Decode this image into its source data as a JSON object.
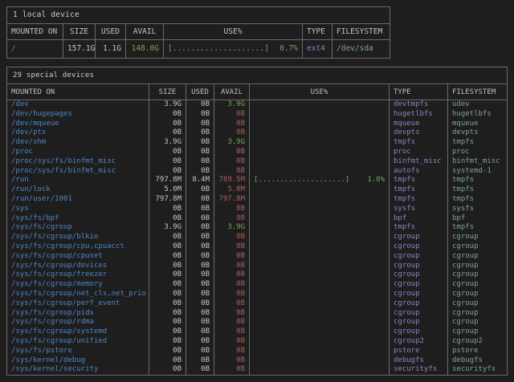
{
  "colors": {
    "text": "#c6c6c6",
    "title": "#cdcdcd",
    "header": "#c2c2c2",
    "mount_blue": "#4e86c6",
    "avail_green": "#78a858",
    "avail_red": "#b05e5e",
    "bar_green": "#78a858",
    "type_violet": "#8d82c6",
    "fs_teal": "#7da39e"
  },
  "tables": [
    {
      "title": "1 local device",
      "headers": [
        "MOUNTED ON",
        "SIZE",
        "USED",
        "AVAIL",
        "USE%",
        "TYPE",
        "FILESYSTEM"
      ],
      "rows": [
        {
          "mount": "/",
          "size": "157.1G",
          "used": "1.1G",
          "avail": "148.0G",
          "avail_state": "ok",
          "bar": "[....................]",
          "pct": "0.7%",
          "type": "ext4",
          "fs": "/dev/sda"
        }
      ]
    },
    {
      "title": "29 special devices",
      "headers": [
        "MOUNTED ON",
        "SIZE",
        "USED",
        "AVAIL",
        "USE%",
        "TYPE",
        "FILESYSTEM"
      ],
      "rows": [
        {
          "mount": "/dev",
          "size": "3.9G",
          "used": "0B",
          "avail": "3.9G",
          "avail_state": "ok",
          "bar": "",
          "pct": "",
          "type": "devtmpfs",
          "fs": "udev"
        },
        {
          "mount": "/dev/hugepages",
          "size": "0B",
          "used": "0B",
          "avail": "0B",
          "avail_state": "zero",
          "bar": "",
          "pct": "",
          "type": "hugetlbfs",
          "fs": "hugetlbfs"
        },
        {
          "mount": "/dev/mqueue",
          "size": "0B",
          "used": "0B",
          "avail": "0B",
          "avail_state": "zero",
          "bar": "",
          "pct": "",
          "type": "mqueue",
          "fs": "mqueue"
        },
        {
          "mount": "/dev/pts",
          "size": "0B",
          "used": "0B",
          "avail": "0B",
          "avail_state": "zero",
          "bar": "",
          "pct": "",
          "type": "devpts",
          "fs": "devpts"
        },
        {
          "mount": "/dev/shm",
          "size": "3.9G",
          "used": "0B",
          "avail": "3.9G",
          "avail_state": "ok",
          "bar": "",
          "pct": "",
          "type": "tmpfs",
          "fs": "tmpfs"
        },
        {
          "mount": "/proc",
          "size": "0B",
          "used": "0B",
          "avail": "0B",
          "avail_state": "zero",
          "bar": "",
          "pct": "",
          "type": "proc",
          "fs": "proc"
        },
        {
          "mount": "/proc/sys/fs/binfmt_misc",
          "size": "0B",
          "used": "0B",
          "avail": "0B",
          "avail_state": "zero",
          "bar": "",
          "pct": "",
          "type": "binfmt_misc",
          "fs": "binfmt_misc"
        },
        {
          "mount": "/proc/sys/fs/binfmt_misc",
          "size": "0B",
          "used": "0B",
          "avail": "0B",
          "avail_state": "zero",
          "bar": "",
          "pct": "",
          "type": "autofs",
          "fs": "systemd-1"
        },
        {
          "mount": "/run",
          "size": "797.8M",
          "used": "8.4M",
          "avail": "789.5M",
          "avail_state": "zero",
          "bar": "[....................]",
          "pct": "1.0%",
          "type": "tmpfs",
          "fs": "tmpfs"
        },
        {
          "mount": "/run/lock",
          "size": "5.0M",
          "used": "0B",
          "avail": "5.0M",
          "avail_state": "zero",
          "bar": "",
          "pct": "",
          "type": "tmpfs",
          "fs": "tmpfs"
        },
        {
          "mount": "/run/user/1001",
          "size": "797.8M",
          "used": "0B",
          "avail": "797.8M",
          "avail_state": "zero",
          "bar": "",
          "pct": "",
          "type": "tmpfs",
          "fs": "tmpfs"
        },
        {
          "mount": "/sys",
          "size": "0B",
          "used": "0B",
          "avail": "0B",
          "avail_state": "zero",
          "bar": "",
          "pct": "",
          "type": "sysfs",
          "fs": "sysfs"
        },
        {
          "mount": "/sys/fs/bpf",
          "size": "0B",
          "used": "0B",
          "avail": "0B",
          "avail_state": "zero",
          "bar": "",
          "pct": "",
          "type": "bpf",
          "fs": "bpf"
        },
        {
          "mount": "/sys/fs/cgroup",
          "size": "3.9G",
          "used": "0B",
          "avail": "3.9G",
          "avail_state": "ok",
          "bar": "",
          "pct": "",
          "type": "tmpfs",
          "fs": "tmpfs"
        },
        {
          "mount": "/sys/fs/cgroup/blkio",
          "size": "0B",
          "used": "0B",
          "avail": "0B",
          "avail_state": "zero",
          "bar": "",
          "pct": "",
          "type": "cgroup",
          "fs": "cgroup"
        },
        {
          "mount": "/sys/fs/cgroup/cpu,cpuacct",
          "size": "0B",
          "used": "0B",
          "avail": "0B",
          "avail_state": "zero",
          "bar": "",
          "pct": "",
          "type": "cgroup",
          "fs": "cgroup"
        },
        {
          "mount": "/sys/fs/cgroup/cpuset",
          "size": "0B",
          "used": "0B",
          "avail": "0B",
          "avail_state": "zero",
          "bar": "",
          "pct": "",
          "type": "cgroup",
          "fs": "cgroup"
        },
        {
          "mount": "/sys/fs/cgroup/devices",
          "size": "0B",
          "used": "0B",
          "avail": "0B",
          "avail_state": "zero",
          "bar": "",
          "pct": "",
          "type": "cgroup",
          "fs": "cgroup"
        },
        {
          "mount": "/sys/fs/cgroup/freezer",
          "size": "0B",
          "used": "0B",
          "avail": "0B",
          "avail_state": "zero",
          "bar": "",
          "pct": "",
          "type": "cgroup",
          "fs": "cgroup"
        },
        {
          "mount": "/sys/fs/cgroup/memory",
          "size": "0B",
          "used": "0B",
          "avail": "0B",
          "avail_state": "zero",
          "bar": "",
          "pct": "",
          "type": "cgroup",
          "fs": "cgroup"
        },
        {
          "mount": "/sys/fs/cgroup/net_cls,net_prio",
          "size": "0B",
          "used": "0B",
          "avail": "0B",
          "avail_state": "zero",
          "bar": "",
          "pct": "",
          "type": "cgroup",
          "fs": "cgroup"
        },
        {
          "mount": "/sys/fs/cgroup/perf_event",
          "size": "0B",
          "used": "0B",
          "avail": "0B",
          "avail_state": "zero",
          "bar": "",
          "pct": "",
          "type": "cgroup",
          "fs": "cgroup"
        },
        {
          "mount": "/sys/fs/cgroup/pids",
          "size": "0B",
          "used": "0B",
          "avail": "0B",
          "avail_state": "zero",
          "bar": "",
          "pct": "",
          "type": "cgroup",
          "fs": "cgroup"
        },
        {
          "mount": "/sys/fs/cgroup/rdma",
          "size": "0B",
          "used": "0B",
          "avail": "0B",
          "avail_state": "zero",
          "bar": "",
          "pct": "",
          "type": "cgroup",
          "fs": "cgroup"
        },
        {
          "mount": "/sys/fs/cgroup/systemd",
          "size": "0B",
          "used": "0B",
          "avail": "0B",
          "avail_state": "zero",
          "bar": "",
          "pct": "",
          "type": "cgroup",
          "fs": "cgroup"
        },
        {
          "mount": "/sys/fs/cgroup/unified",
          "size": "0B",
          "used": "0B",
          "avail": "0B",
          "avail_state": "zero",
          "bar": "",
          "pct": "",
          "type": "cgroup2",
          "fs": "cgroup2"
        },
        {
          "mount": "/sys/fs/pstore",
          "size": "0B",
          "used": "0B",
          "avail": "0B",
          "avail_state": "zero",
          "bar": "",
          "pct": "",
          "type": "pstore",
          "fs": "pstore"
        },
        {
          "mount": "/sys/kernel/debug",
          "size": "0B",
          "used": "0B",
          "avail": "0B",
          "avail_state": "zero",
          "bar": "",
          "pct": "",
          "type": "debugfs",
          "fs": "debugfs"
        },
        {
          "mount": "/sys/kernel/security",
          "size": "0B",
          "used": "0B",
          "avail": "0B",
          "avail_state": "zero",
          "bar": "",
          "pct": "",
          "type": "securityfs",
          "fs": "securityfs"
        }
      ]
    }
  ]
}
